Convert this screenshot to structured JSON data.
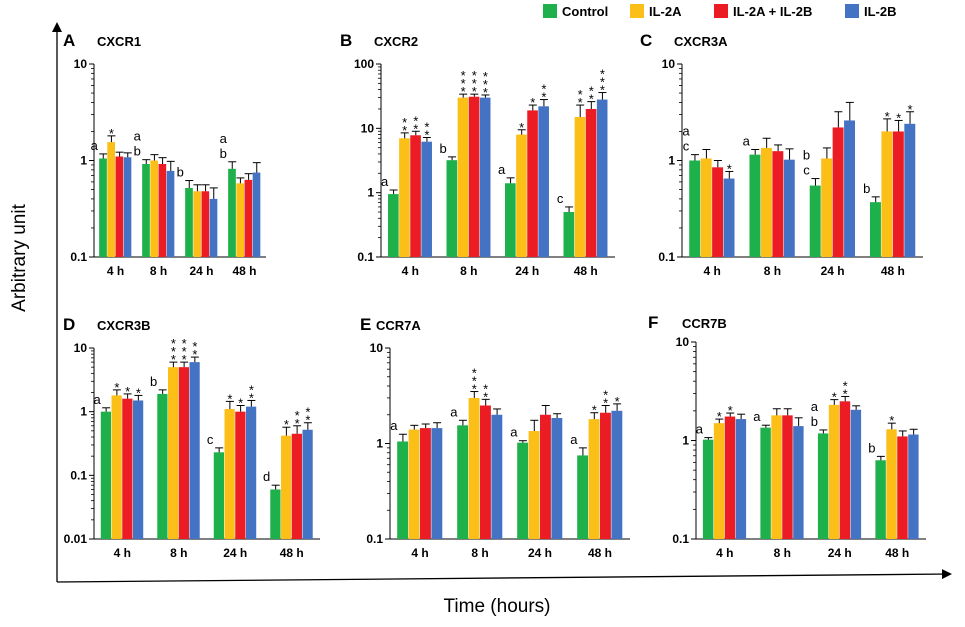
{
  "figure": {
    "ylabel": "Arbitrary unit",
    "xlabel": "Time (hours)"
  },
  "legend": {
    "entries": [
      {
        "name": "Control",
        "color": "#1db04b"
      },
      {
        "name": "IL-2A",
        "color": "#fbbf18"
      },
      {
        "name": "IL-2A + IL-2B",
        "color": "#ec1c24"
      },
      {
        "name": "IL-2B",
        "color": "#4573c4"
      }
    ]
  },
  "chart_data": [
    {
      "type": "bar",
      "letter": "A",
      "title": "CXCR1",
      "scale": "log",
      "categories": [
        "4 h",
        "8 h",
        "24 h",
        "48 h"
      ],
      "ylim": [
        0.1,
        10
      ],
      "yticks": [
        "0.1",
        "1",
        "10"
      ],
      "series": [
        {
          "name": "Control",
          "values": [
            1.05,
            0.92,
            0.52,
            0.82
          ],
          "errors": [
            0.12,
            0.1,
            0.1,
            0.15
          ]
        },
        {
          "name": "IL-2A",
          "values": [
            1.55,
            1.0,
            0.48,
            0.58
          ],
          "errors": [
            0.25,
            0.15,
            0.08,
            0.08
          ]
        },
        {
          "name": "IL-2A + IL-2B",
          "values": [
            1.1,
            0.92,
            0.48,
            0.63
          ],
          "errors": [
            0.12,
            0.15,
            0.08,
            0.1
          ]
        },
        {
          "name": "IL-2B",
          "values": [
            1.08,
            0.78,
            0.4,
            0.75
          ],
          "errors": [
            0.12,
            0.2,
            0.12,
            0.2
          ]
        }
      ],
      "annotations": [
        {
          "category": 0,
          "series": 0,
          "lines": [
            "a"
          ]
        },
        {
          "category": 0,
          "series": 1,
          "lines": [
            "*"
          ]
        },
        {
          "category": 1,
          "series": 0,
          "lines": [
            "a",
            "b"
          ]
        },
        {
          "category": 2,
          "series": 0,
          "lines": [
            "b"
          ]
        },
        {
          "category": 3,
          "series": 0,
          "lines": [
            "a",
            "b"
          ]
        }
      ]
    },
    {
      "type": "bar",
      "letter": "B",
      "title": "CXCR2",
      "scale": "log",
      "categories": [
        "4 h",
        "8 h",
        "24 h",
        "48 h"
      ],
      "ylim": [
        0.1,
        100
      ],
      "yticks": [
        "0.1",
        "1",
        "10",
        "100"
      ],
      "series": [
        {
          "name": "Control",
          "values": [
            0.95,
            3.2,
            1.4,
            0.5
          ],
          "errors": [
            0.15,
            0.4,
            0.3,
            0.1
          ]
        },
        {
          "name": "IL-2A",
          "values": [
            7.0,
            30.0,
            8.0,
            15.0
          ],
          "errors": [
            1.5,
            4.0,
            1.5,
            8.0
          ]
        },
        {
          "name": "IL-2A + IL-2B",
          "values": [
            7.8,
            31.0,
            19.0,
            20.0
          ],
          "errors": [
            1.2,
            3.0,
            4.0,
            6.0
          ]
        },
        {
          "name": "IL-2B",
          "values": [
            6.2,
            30.0,
            22.0,
            28.0
          ],
          "errors": [
            1.0,
            3.0,
            6.0,
            8.0
          ]
        }
      ],
      "annotations": [
        {
          "category": 0,
          "series": 0,
          "lines": [
            "a"
          ]
        },
        {
          "category": 0,
          "series": 1,
          "lines": [
            "*",
            "*"
          ]
        },
        {
          "category": 0,
          "series": 2,
          "lines": [
            "*",
            "*"
          ]
        },
        {
          "category": 0,
          "series": 3,
          "lines": [
            "*",
            "*"
          ]
        },
        {
          "category": 1,
          "series": 0,
          "lines": [
            "b"
          ]
        },
        {
          "category": 1,
          "series": 1,
          "lines": [
            "*",
            "*",
            "*"
          ]
        },
        {
          "category": 1,
          "series": 2,
          "lines": [
            "*",
            "*",
            "*"
          ]
        },
        {
          "category": 1,
          "series": 3,
          "lines": [
            "*",
            "*",
            "*"
          ]
        },
        {
          "category": 2,
          "series": 0,
          "lines": [
            "a"
          ]
        },
        {
          "category": 2,
          "series": 1,
          "lines": [
            "*"
          ]
        },
        {
          "category": 2,
          "series": 2,
          "lines": [
            "*"
          ]
        },
        {
          "category": 2,
          "series": 3,
          "lines": [
            "*",
            "*"
          ]
        },
        {
          "category": 3,
          "series": 0,
          "lines": [
            "c"
          ]
        },
        {
          "category": 3,
          "series": 1,
          "lines": [
            "*",
            "*"
          ]
        },
        {
          "category": 3,
          "series": 2,
          "lines": [
            "*",
            "*"
          ]
        },
        {
          "category": 3,
          "series": 3,
          "lines": [
            "*",
            "*",
            "*"
          ]
        }
      ]
    },
    {
      "type": "bar",
      "letter": "C",
      "title": "CXCR3A",
      "scale": "log",
      "categories": [
        "4 h",
        "8 h",
        "24 h",
        "48 h"
      ],
      "ylim": [
        0.1,
        10
      ],
      "yticks": [
        "0.1",
        "1",
        "10"
      ],
      "series": [
        {
          "name": "Control",
          "values": [
            1.0,
            1.15,
            0.55,
            0.37
          ],
          "errors": [
            0.15,
            0.15,
            0.1,
            0.05
          ]
        },
        {
          "name": "IL-2A",
          "values": [
            1.05,
            1.35,
            1.05,
            2.0
          ],
          "errors": [
            0.25,
            0.35,
            0.3,
            0.7
          ]
        },
        {
          "name": "IL-2A + IL-2B",
          "values": [
            0.85,
            1.25,
            2.2,
            2.0
          ],
          "errors": [
            0.15,
            0.2,
            1.0,
            0.6
          ]
        },
        {
          "name": "IL-2B",
          "values": [
            0.65,
            1.02,
            2.6,
            2.4
          ],
          "errors": [
            0.12,
            0.3,
            1.4,
            0.8
          ]
        }
      ],
      "annotations": [
        {
          "category": 0,
          "series": 0,
          "lines": [
            "a",
            "c"
          ]
        },
        {
          "category": 0,
          "series": 3,
          "lines": [
            "*"
          ]
        },
        {
          "category": 1,
          "series": 0,
          "lines": [
            "a"
          ]
        },
        {
          "category": 2,
          "series": 0,
          "lines": [
            "b",
            "c"
          ]
        },
        {
          "category": 3,
          "series": 0,
          "lines": [
            "b"
          ]
        },
        {
          "category": 3,
          "series": 1,
          "lines": [
            "*"
          ]
        },
        {
          "category": 3,
          "series": 2,
          "lines": [
            "*"
          ]
        },
        {
          "category": 3,
          "series": 3,
          "lines": [
            "*"
          ]
        }
      ]
    },
    {
      "type": "bar",
      "letter": "D",
      "title": "CXCR3B",
      "scale": "log",
      "categories": [
        "4 h",
        "8 h",
        "24 h",
        "48 h"
      ],
      "ylim": [
        0.01,
        10
      ],
      "yticks": [
        "0.01",
        "0.1",
        "1",
        "10"
      ],
      "series": [
        {
          "name": "Control",
          "values": [
            1.0,
            1.9,
            0.23,
            0.06
          ],
          "errors": [
            0.15,
            0.3,
            0.04,
            0.01
          ]
        },
        {
          "name": "IL-2A",
          "values": [
            1.8,
            5.0,
            1.1,
            0.42
          ],
          "errors": [
            0.4,
            1.0,
            0.35,
            0.15
          ]
        },
        {
          "name": "IL-2A + IL-2B",
          "values": [
            1.6,
            5.0,
            1.0,
            0.45
          ],
          "errors": [
            0.3,
            1.0,
            0.25,
            0.15
          ]
        },
        {
          "name": "IL-2B",
          "values": [
            1.5,
            6.0,
            1.2,
            0.52
          ],
          "errors": [
            0.3,
            1.2,
            0.3,
            0.15
          ]
        }
      ],
      "annotations": [
        {
          "category": 0,
          "series": 0,
          "lines": [
            "a"
          ]
        },
        {
          "category": 0,
          "series": 1,
          "lines": [
            "*"
          ]
        },
        {
          "category": 0,
          "series": 2,
          "lines": [
            "*"
          ]
        },
        {
          "category": 0,
          "series": 3,
          "lines": [
            "*"
          ]
        },
        {
          "category": 1,
          "series": 0,
          "lines": [
            "b"
          ]
        },
        {
          "category": 1,
          "series": 1,
          "lines": [
            "*",
            "*",
            "*"
          ]
        },
        {
          "category": 1,
          "series": 2,
          "lines": [
            "*",
            "*",
            "*"
          ]
        },
        {
          "category": 1,
          "series": 3,
          "lines": [
            "*",
            "*"
          ]
        },
        {
          "category": 2,
          "series": 0,
          "lines": [
            "c"
          ]
        },
        {
          "category": 2,
          "series": 1,
          "lines": [
            "*"
          ]
        },
        {
          "category": 2,
          "series": 2,
          "lines": [
            "*"
          ]
        },
        {
          "category": 2,
          "series": 3,
          "lines": [
            "*",
            "*"
          ]
        },
        {
          "category": 3,
          "series": 0,
          "lines": [
            "d"
          ]
        },
        {
          "category": 3,
          "series": 1,
          "lines": [
            "*"
          ]
        },
        {
          "category": 3,
          "series": 2,
          "lines": [
            "*",
            "*"
          ]
        },
        {
          "category": 3,
          "series": 3,
          "lines": [
            "*",
            "*"
          ]
        }
      ]
    },
    {
      "type": "bar",
      "letter": "E",
      "title": "CCR7A",
      "scale": "log",
      "categories": [
        "4 h",
        "8 h",
        "24 h",
        "48 h"
      ],
      "ylim": [
        0.1,
        10
      ],
      "yticks": [
        "0.1",
        "1",
        "10"
      ],
      "series": [
        {
          "name": "Control",
          "values": [
            1.05,
            1.55,
            1.02,
            0.75
          ],
          "errors": [
            0.2,
            0.2,
            0.05,
            0.15
          ]
        },
        {
          "name": "IL-2A",
          "values": [
            1.4,
            3.0,
            1.35,
            1.8
          ],
          "errors": [
            0.15,
            0.5,
            0.4,
            0.3
          ]
        },
        {
          "name": "IL-2A + IL-2B",
          "values": [
            1.45,
            2.5,
            2.0,
            2.1
          ],
          "errors": [
            0.15,
            0.4,
            0.5,
            0.4
          ]
        },
        {
          "name": "IL-2B",
          "values": [
            1.45,
            2.0,
            1.85,
            2.2
          ],
          "errors": [
            0.2,
            0.3,
            0.2,
            0.4
          ]
        }
      ],
      "annotations": [
        {
          "category": 0,
          "series": 0,
          "lines": [
            "a"
          ]
        },
        {
          "category": 1,
          "series": 0,
          "lines": [
            "a"
          ]
        },
        {
          "category": 1,
          "series": 1,
          "lines": [
            "*",
            "*",
            "*"
          ]
        },
        {
          "category": 1,
          "series": 2,
          "lines": [
            "*",
            "*"
          ]
        },
        {
          "category": 2,
          "series": 0,
          "lines": [
            "a"
          ]
        },
        {
          "category": 3,
          "series": 0,
          "lines": [
            "a"
          ]
        },
        {
          "category": 3,
          "series": 1,
          "lines": [
            "*"
          ]
        },
        {
          "category": 3,
          "series": 2,
          "lines": [
            "*",
            "*"
          ]
        },
        {
          "category": 3,
          "series": 3,
          "lines": [
            "*"
          ]
        }
      ]
    },
    {
      "type": "bar",
      "letter": "F",
      "title": "CCR7B",
      "scale": "log",
      "categories": [
        "4 h",
        "8 h",
        "24 h",
        "48 h"
      ],
      "ylim": [
        0.1,
        10
      ],
      "yticks": [
        "0.1",
        "1",
        "10"
      ],
      "series": [
        {
          "name": "Control",
          "values": [
            1.02,
            1.35,
            1.18,
            0.63
          ],
          "errors": [
            0.05,
            0.08,
            0.1,
            0.06
          ]
        },
        {
          "name": "IL-2A",
          "values": [
            1.5,
            1.8,
            2.3,
            1.3
          ],
          "errors": [
            0.15,
            0.3,
            0.3,
            0.2
          ]
        },
        {
          "name": "IL-2A + IL-2B",
          "values": [
            1.75,
            1.8,
            2.5,
            1.1
          ],
          "errors": [
            0.15,
            0.3,
            0.3,
            0.15
          ]
        },
        {
          "name": "IL-2B",
          "values": [
            1.65,
            1.4,
            2.05,
            1.15
          ],
          "errors": [
            0.2,
            0.3,
            0.2,
            0.15
          ]
        }
      ],
      "annotations": [
        {
          "category": 0,
          "series": 0,
          "lines": [
            "a"
          ]
        },
        {
          "category": 0,
          "series": 1,
          "lines": [
            "*"
          ]
        },
        {
          "category": 0,
          "series": 2,
          "lines": [
            "*"
          ]
        },
        {
          "category": 1,
          "series": 0,
          "lines": [
            "a"
          ]
        },
        {
          "category": 2,
          "series": 0,
          "lines": [
            "a",
            "b"
          ]
        },
        {
          "category": 2,
          "series": 1,
          "lines": [
            "*"
          ]
        },
        {
          "category": 2,
          "series": 2,
          "lines": [
            "*",
            "*"
          ]
        },
        {
          "category": 3,
          "series": 0,
          "lines": [
            "b"
          ]
        },
        {
          "category": 3,
          "series": 1,
          "lines": [
            "*"
          ]
        }
      ]
    }
  ]
}
